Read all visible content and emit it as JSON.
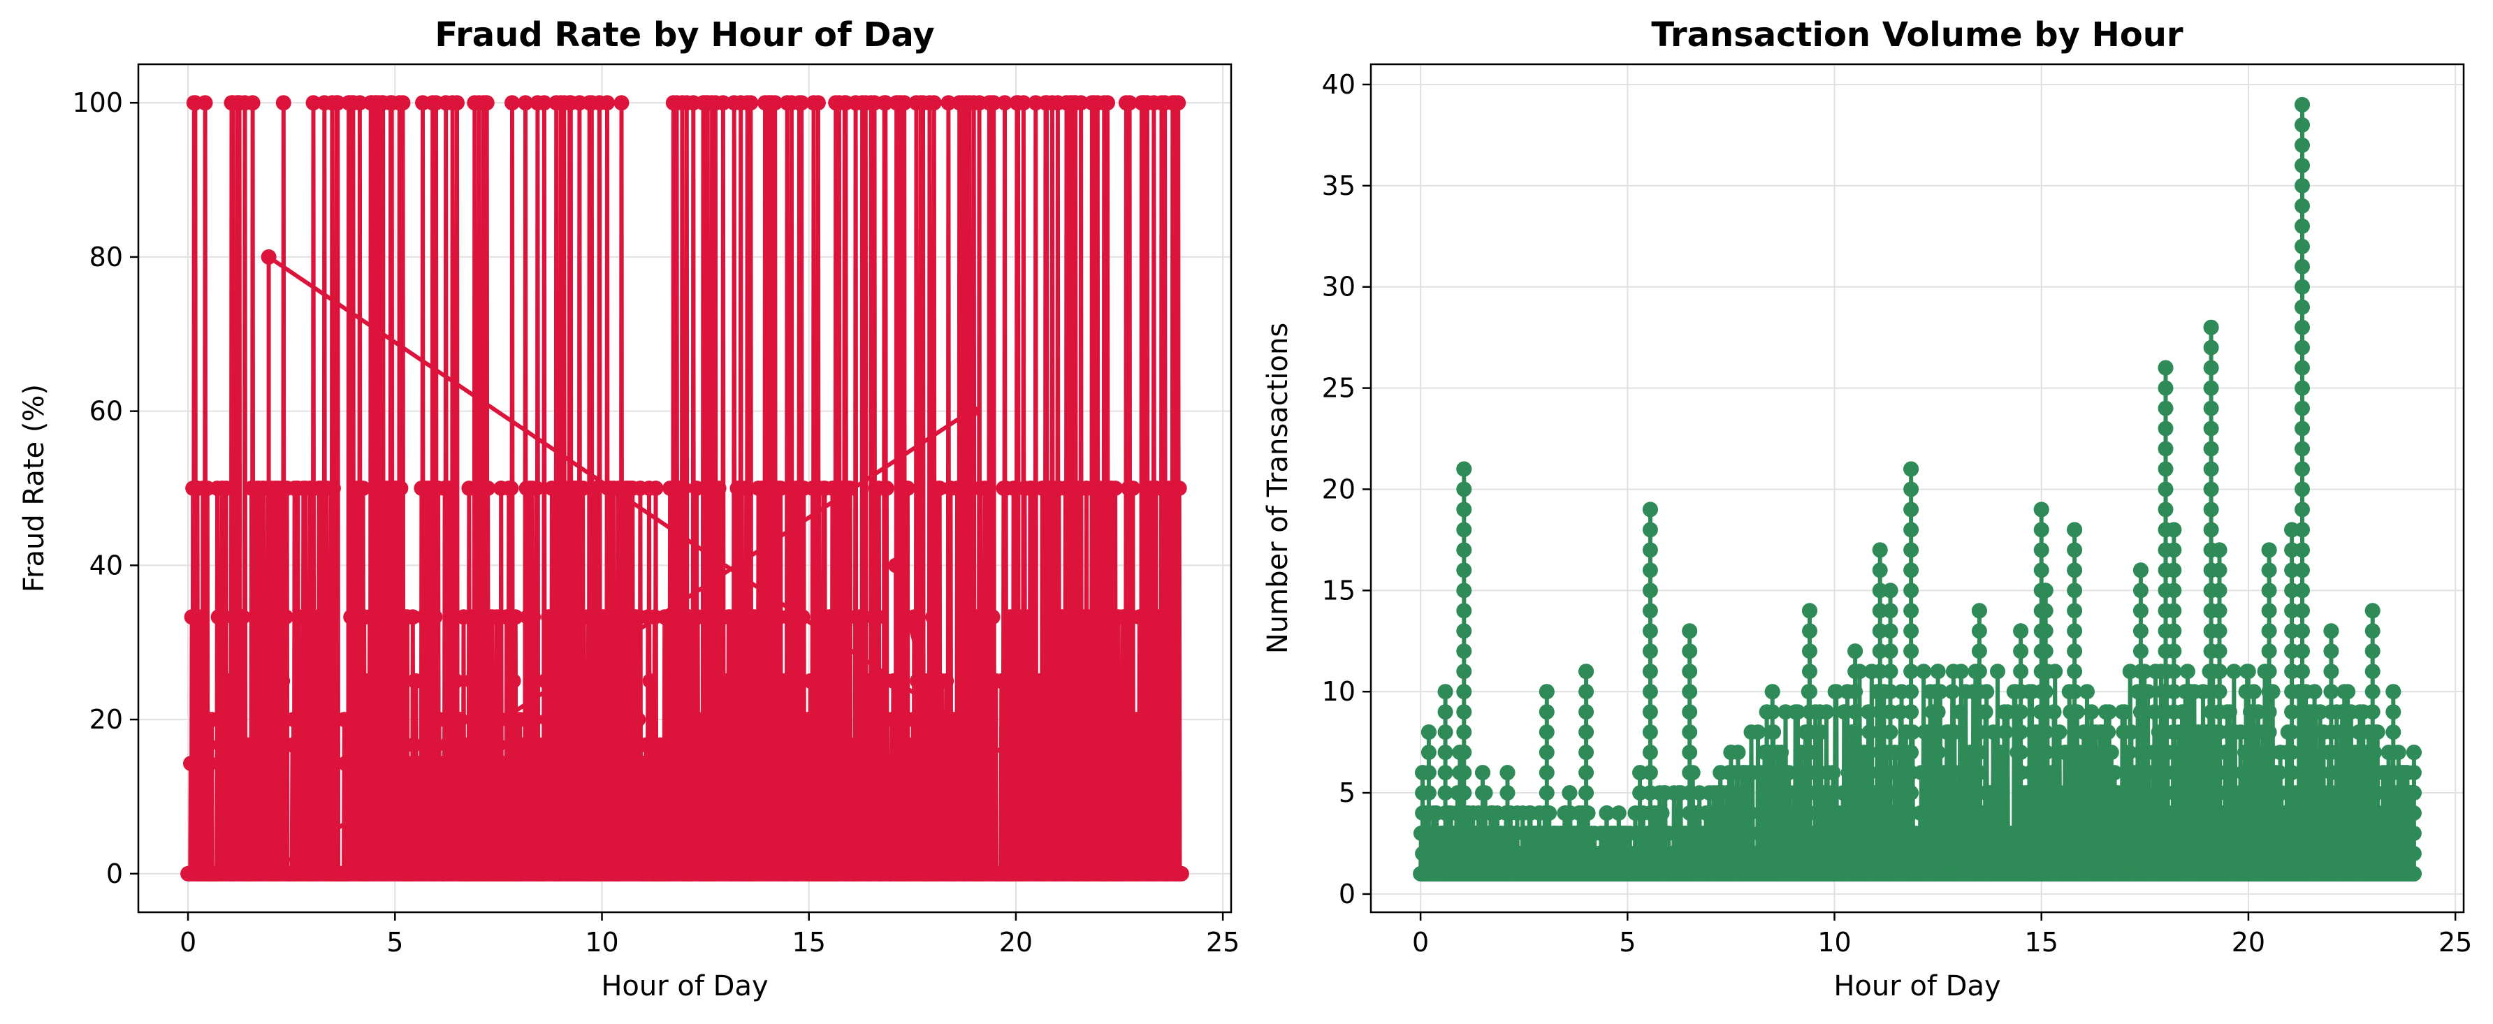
{
  "colors": {
    "fraud": "#DC143C",
    "volume": "#2E8B57",
    "grid": "#E0E0E0"
  },
  "chart_data": [
    {
      "type": "line",
      "title": "Fraud Rate by Hour of Day",
      "xlabel": "Hour of Day",
      "ylabel": "Fraud Rate (%)",
      "xlim": [
        -1.2,
        25.2
      ],
      "ylim": [
        -5,
        105
      ],
      "xticks": [
        0,
        5,
        10,
        15,
        20,
        25
      ],
      "yticks": [
        0,
        20,
        40,
        60,
        80,
        100
      ],
      "grid": true,
      "marker": "circle",
      "series": [
        {
          "note": "dense per-transaction-time series; values oscillate between 0 and fraud rates 100, 50, 33.3, 25, 20, 16.7, 14.3 across hours 0 to 24",
          "levels": [
            0,
            14.3,
            16.7,
            20,
            25,
            33.3,
            40,
            50,
            60,
            80,
            100
          ],
          "x_range": [
            0,
            24
          ],
          "dense_points": 1800
        }
      ]
    },
    {
      "type": "line",
      "title": "Transaction Volume by Hour",
      "xlabel": "Hour of Day",
      "ylabel": "Number of Transactions",
      "xlim": [
        -1.2,
        25.2
      ],
      "ylim": [
        -0.9,
        41
      ],
      "xticks": [
        0,
        5,
        10,
        15,
        20,
        25
      ],
      "yticks": [
        0,
        5,
        10,
        15,
        20,
        25,
        30,
        35,
        40
      ],
      "grid": true,
      "marker": "circle",
      "series": [
        {
          "note": "dense per-transaction-time series oscillating from 1 up to a per-period level; notable peaks listed",
          "x_range": [
            0,
            24
          ],
          "dense_points": 1800,
          "peaks": [
            {
              "x": 0.05,
              "y": 6
            },
            {
              "x": 0.2,
              "y": 8
            },
            {
              "x": 0.6,
              "y": 10
            },
            {
              "x": 0.95,
              "y": 7
            },
            {
              "x": 1.05,
              "y": 21
            },
            {
              "x": 1.5,
              "y": 6
            },
            {
              "x": 2.1,
              "y": 6
            },
            {
              "x": 3.05,
              "y": 10
            },
            {
              "x": 3.6,
              "y": 5
            },
            {
              "x": 4.0,
              "y": 11
            },
            {
              "x": 4.5,
              "y": 4
            },
            {
              "x": 5.3,
              "y": 6
            },
            {
              "x": 5.55,
              "y": 19
            },
            {
              "x": 6.5,
              "y": 13
            },
            {
              "x": 7.5,
              "y": 7
            },
            {
              "x": 8.5,
              "y": 10
            },
            {
              "x": 9.4,
              "y": 14
            },
            {
              "x": 10.5,
              "y": 12
            },
            {
              "x": 11.1,
              "y": 17
            },
            {
              "x": 11.35,
              "y": 15
            },
            {
              "x": 11.85,
              "y": 21
            },
            {
              "x": 12.5,
              "y": 11
            },
            {
              "x": 13.5,
              "y": 14
            },
            {
              "x": 14.5,
              "y": 13
            },
            {
              "x": 15.0,
              "y": 19
            },
            {
              "x": 15.1,
              "y": 15
            },
            {
              "x": 15.8,
              "y": 18
            },
            {
              "x": 17.4,
              "y": 16
            },
            {
              "x": 18.0,
              "y": 26
            },
            {
              "x": 18.2,
              "y": 18
            },
            {
              "x": 19.1,
              "y": 28
            },
            {
              "x": 19.3,
              "y": 17
            },
            {
              "x": 20.5,
              "y": 17
            },
            {
              "x": 21.05,
              "y": 18
            },
            {
              "x": 21.3,
              "y": 39
            },
            {
              "x": 22.0,
              "y": 13
            },
            {
              "x": 23.0,
              "y": 14
            },
            {
              "x": 23.5,
              "y": 10
            },
            {
              "x": 24.0,
              "y": 7
            }
          ],
          "base_level_by_hour": [
            {
              "x": 0,
              "y": 5
            },
            {
              "x": 5,
              "y": 4
            },
            {
              "x": 7,
              "y": 6
            },
            {
              "x": 8,
              "y": 8
            },
            {
              "x": 9,
              "y": 10
            },
            {
              "x": 10,
              "y": 11
            },
            {
              "x": 14,
              "y": 11
            },
            {
              "x": 20,
              "y": 11
            },
            {
              "x": 22.5,
              "y": 10
            },
            {
              "x": 24,
              "y": 6
            }
          ]
        }
      ]
    }
  ]
}
